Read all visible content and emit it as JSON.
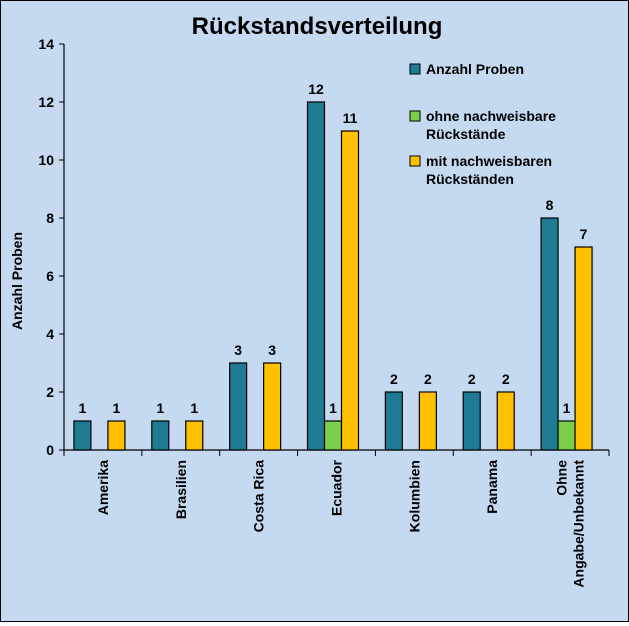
{
  "chart_data": {
    "type": "bar",
    "title": "Rückstandsverteilung",
    "ylabel": "Anzahl Proben",
    "xlabel": "",
    "ylim": [
      0,
      14
    ],
    "yticks": [
      0,
      2,
      4,
      6,
      8,
      10,
      12,
      14
    ],
    "grid": false,
    "legend_position": "top-right",
    "categories": [
      "Amerika",
      "Brasilien",
      "Costa Rica",
      "Ecuador",
      "Kolumbien",
      "Panama",
      "Ohne\nAngabe/Unbekannt"
    ],
    "series": [
      {
        "name": "Anzahl Proben",
        "color": "#1f7a94",
        "values": [
          1,
          1,
          3,
          12,
          2,
          2,
          8
        ]
      },
      {
        "name": "ohne nachweisbare\nRückstände",
        "color": "#7ccf4a",
        "values": [
          0,
          0,
          0,
          1,
          0,
          0,
          1
        ]
      },
      {
        "name": "mit nachweisbaren\nRückständen",
        "color": "#ffc000",
        "values": [
          1,
          1,
          3,
          11,
          2,
          2,
          7
        ]
      }
    ]
  }
}
